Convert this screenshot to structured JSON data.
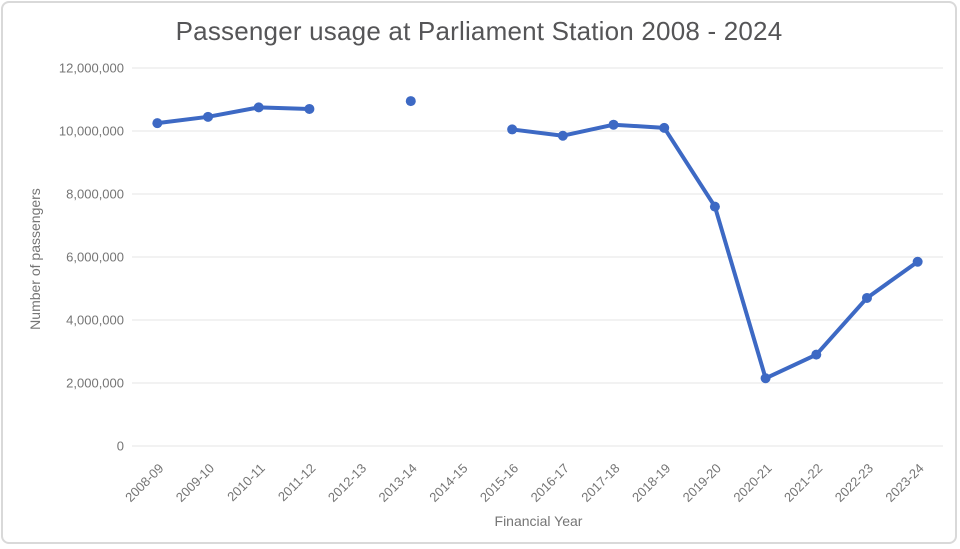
{
  "chart_data": {
    "type": "line",
    "title": "Passenger usage at Parliament Station 2008 - 2024",
    "xlabel": "Financial Year",
    "ylabel": "Number of passengers",
    "categories": [
      "2008-09",
      "2009-10",
      "2010-11",
      "2011-12",
      "2012-13",
      "2013-14",
      "2014-15",
      "2015-16",
      "2016-17",
      "2017-18",
      "2018-19",
      "2019-20",
      "2020-21",
      "2021-22",
      "2022-23",
      "2023-24"
    ],
    "series": [
      {
        "name": "Number of passengers",
        "values": [
          10250000,
          10450000,
          10750000,
          10700000,
          null,
          10950000,
          null,
          10050000,
          9850000,
          10200000,
          10100000,
          7600000,
          2150000,
          2900000,
          4700000,
          5850000
        ]
      }
    ],
    "ylim": [
      0,
      12000000
    ],
    "y_ticks": [
      {
        "value": 0,
        "label": "0"
      },
      {
        "value": 2000000,
        "label": "2,000,000"
      },
      {
        "value": 4000000,
        "label": "4,000,000"
      },
      {
        "value": 6000000,
        "label": "6,000,000"
      },
      {
        "value": 8000000,
        "label": "8,000,000"
      },
      {
        "value": 10000000,
        "label": "10,000,000"
      },
      {
        "value": 12000000,
        "label": "12,000,000"
      }
    ],
    "grid": "horizontal-only",
    "legend": "none",
    "marker": "circle",
    "notes": "no data shown for 2012-13 and 2014-15; 2013-14 is an isolated point",
    "colors": {
      "series": "#3d69c4",
      "gridline": "#e6e6e6",
      "tick_text": "#757575",
      "title_text": "#555557",
      "frame_border": "#d9d9d9"
    }
  }
}
